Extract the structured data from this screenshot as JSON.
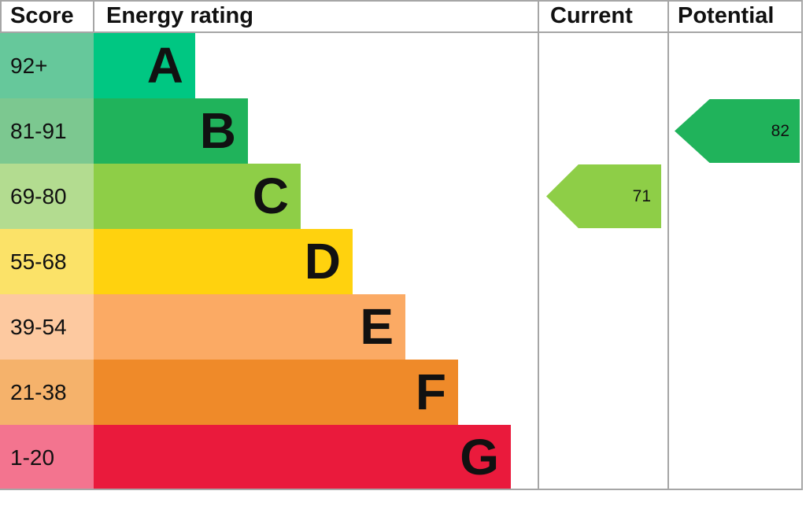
{
  "header": {
    "score": "Score",
    "rating": "Energy rating",
    "current": "Current",
    "potential": "Potential"
  },
  "chart_data": {
    "type": "bar",
    "title": "Energy rating (EPC) chart",
    "columns": [
      "Score",
      "Energy rating",
      "Current",
      "Potential"
    ],
    "bands": [
      {
        "score": "92+",
        "letter": "A",
        "bar_color": "#00c782",
        "score_color": "#66c89b"
      },
      {
        "score": "81-91",
        "letter": "B",
        "bar_color": "#20b35b",
        "score_color": "#7cc890"
      },
      {
        "score": "69-80",
        "letter": "C",
        "bar_color": "#8ece47",
        "score_color": "#b3dc90"
      },
      {
        "score": "55-68",
        "letter": "D",
        "bar_color": "#ffd20e",
        "score_color": "#fbe268"
      },
      {
        "score": "39-54",
        "letter": "E",
        "bar_color": "#fbaa64",
        "score_color": "#fdc9a0"
      },
      {
        "score": "21-38",
        "letter": "F",
        "bar_color": "#ef8a29",
        "score_color": "#f5b26b"
      },
      {
        "score": "1-20",
        "letter": "G",
        "bar_color": "#ea1a3c",
        "score_color": "#f3748f"
      }
    ],
    "current": {
      "value": 71,
      "band": "C",
      "color": "#8ece47"
    },
    "potential": {
      "value": 82,
      "band": "B",
      "color": "#20b35b"
    },
    "layout": {
      "grid": "table",
      "bars": "left-aligned increasing width A to G"
    }
  },
  "colors": {
    "border": "#a6a6a6",
    "text": "#111111",
    "background": "#ffffff"
  }
}
